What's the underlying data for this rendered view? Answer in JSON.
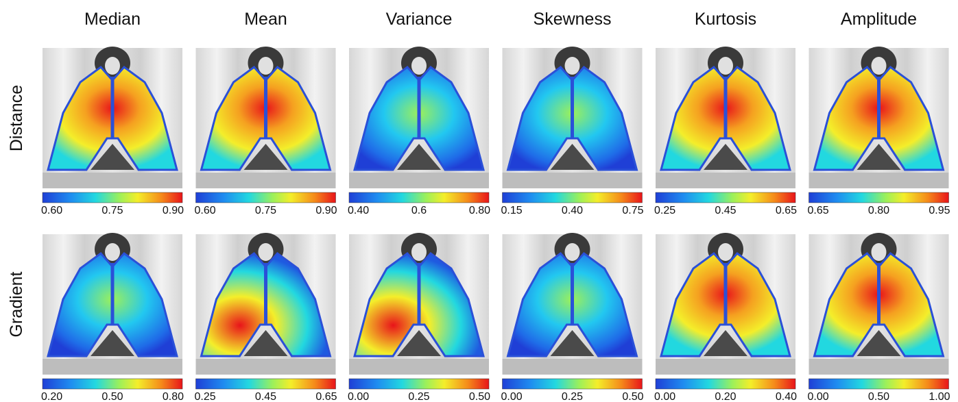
{
  "columns": [
    "Median",
    "Mean",
    "Variance",
    "Skewness",
    "Kurtosis",
    "Amplitude"
  ],
  "rows": [
    {
      "label": "Distance",
      "colorbars": [
        [
          "0.60",
          "0.75",
          "0.90"
        ],
        [
          "0.60",
          "0.75",
          "0.90"
        ],
        [
          "0.40",
          "0.6",
          "0.80"
        ],
        [
          "0.15",
          "0.40",
          "0.75"
        ],
        [
          "0.25",
          "0.45",
          "0.65"
        ],
        [
          "0.65",
          "0.80",
          "0.95"
        ]
      ]
    },
    {
      "label": "Gradient",
      "colorbars": [
        [
          "0.20",
          "0.50",
          "0.80"
        ],
        [
          "0.25",
          "0.45",
          "0.65"
        ],
        [
          "0.00",
          "0.25",
          "0.50"
        ],
        [
          "0.00",
          "0.25",
          "0.50"
        ],
        [
          "0.00",
          "0.20",
          "0.40"
        ],
        [
          "0.00",
          "0.50",
          "1.00"
        ]
      ]
    }
  ]
}
